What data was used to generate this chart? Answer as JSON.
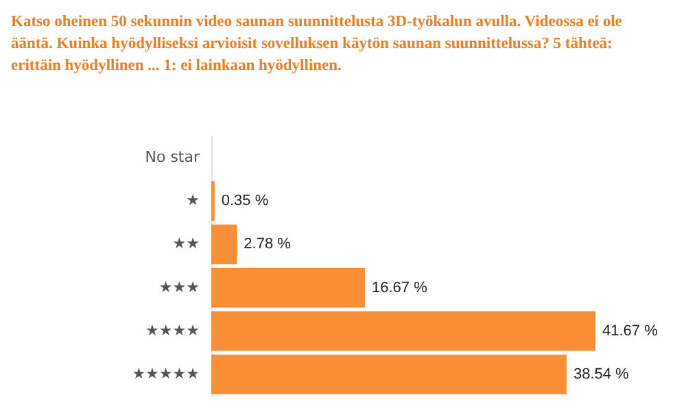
{
  "chart_data": {
    "type": "bar",
    "orientation": "horizontal",
    "title": "Katso oheinen 50 sekunnin video saunan suunnittelusta 3D-työkalun avulla. Videossa ei ole ääntä. Kuinka hyödylliseksi arvioisit sovelluksen käytön saunan suunnittelussa? 5 tähteä: erittäin hyödyllinen ... 1: ei lainkaan hyödyllinen.",
    "categories": [
      "No star",
      "★",
      "★★",
      "★★★",
      "★★★★",
      "★★★★★"
    ],
    "values": [
      0,
      0.35,
      2.78,
      16.67,
      41.67,
      38.54
    ],
    "value_labels": [
      null,
      "0.35 %",
      "2.78 %",
      "16.67 %",
      "41.67 %",
      "38.54 %"
    ],
    "color": "#f98e35",
    "grid": false
  }
}
